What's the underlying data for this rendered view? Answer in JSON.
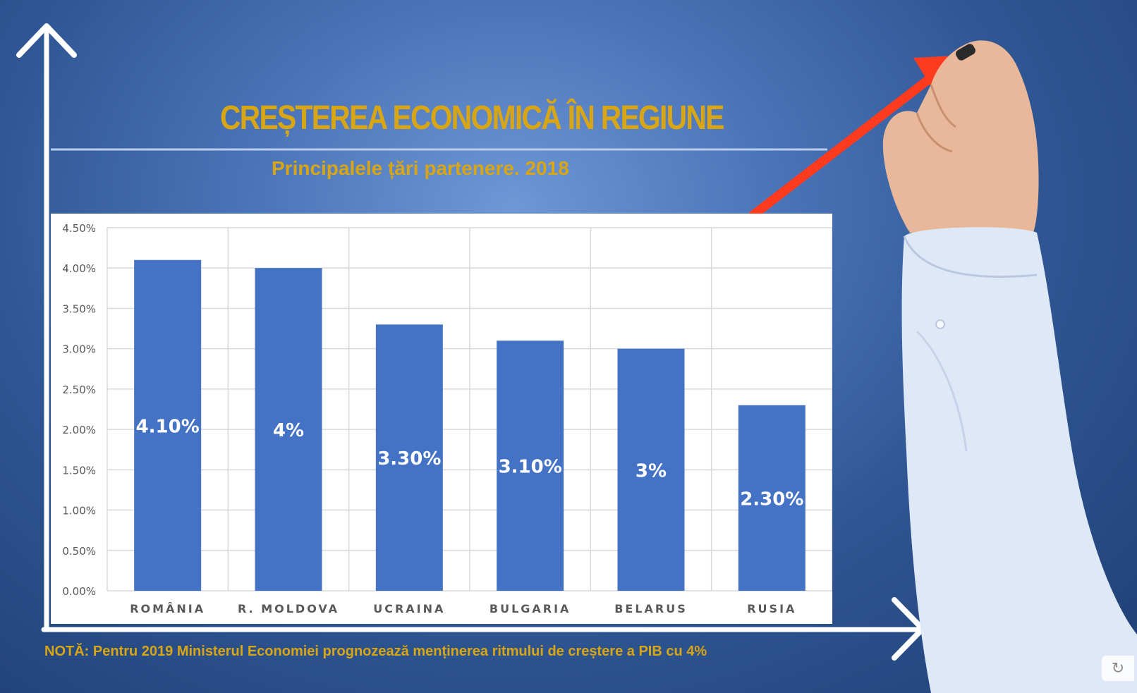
{
  "title": "CREȘTEREA ECONOMICĂ ÎN REGIUNE",
  "subtitle": "Principalele țări partenere. 2018",
  "note": "NOTĂ: Pentru 2019 Ministerul Economiei prognozează menținerea ritmului de creștere a PIB cu 4%",
  "colors": {
    "accent_text": "#d8a615",
    "bar": "#4472c4",
    "arrow": "#ff3b1f"
  },
  "chart_data": {
    "type": "bar",
    "categories": [
      "ROMÂNIA",
      "R. MOLDOVA",
      "UCRAINA",
      "BULGARIA",
      "BELARUS",
      "RUSIA"
    ],
    "values": [
      4.1,
      4.0,
      3.3,
      3.1,
      3.0,
      2.3
    ],
    "data_labels": [
      "4.10%",
      "4%",
      "3.30%",
      "3.10%",
      "3%",
      "2.30%"
    ],
    "y_ticks": [
      "0.00%",
      "0.50%",
      "1.00%",
      "1.50%",
      "2.00%",
      "2.50%",
      "3.00%",
      "3.50%",
      "4.00%",
      "4.50%"
    ],
    "ylim": [
      0,
      4.5
    ],
    "grid": true,
    "xlabel": "",
    "ylabel": ""
  },
  "icons": {
    "refresh": "refresh-icon",
    "axis_arrows": "axis-arrow-icon",
    "trend_arrow": "trend-arrow-icon",
    "hand": "hand-with-marker-icon"
  }
}
